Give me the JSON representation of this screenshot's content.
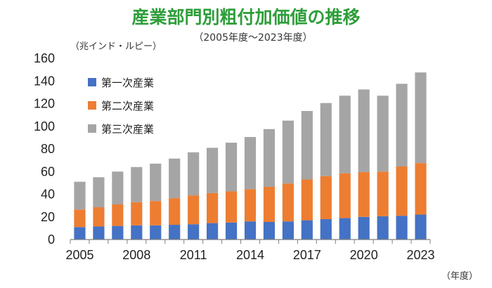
{
  "title": "産業部門別粗付加価値の推移",
  "subtitle": "（2005年度～2023年度）",
  "y_unit": "（兆インド・ルピー）",
  "x_unit": "（年度）",
  "colors": {
    "title": "#2e9e3a",
    "primary": "#4472c4",
    "secondary": "#ed7d31",
    "tertiary": "#a5a5a5",
    "axis": "#7f7f7f"
  },
  "chart_data": {
    "type": "bar",
    "stacked": true,
    "title": "産業部門別粗付加価値の推移",
    "subtitle": "（2005年度～2023年度）",
    "ylabel": "（兆インド・ルピー）",
    "xlabel": "（年度）",
    "ylim": [
      0,
      160
    ],
    "y_ticks": [
      0,
      20,
      40,
      60,
      80,
      100,
      120,
      140,
      160
    ],
    "x_tick_labels": [
      "2005",
      "2008",
      "2011",
      "2014",
      "2017",
      "2020",
      "2023"
    ],
    "grid": false,
    "legend_position": "top-left",
    "categories": [
      "2005",
      "2006",
      "2007",
      "2008",
      "2009",
      "2010",
      "2011",
      "2012",
      "2013",
      "2014",
      "2015",
      "2016",
      "2017",
      "2018",
      "2019",
      "2020",
      "2021",
      "2022",
      "2023"
    ],
    "series": [
      {
        "name": "第一次産業",
        "color": "#4472c4",
        "values": [
          11,
          11.5,
          12,
          12.5,
          12.5,
          13,
          13.5,
          14.5,
          15,
          16,
          15.5,
          16,
          17,
          18,
          19,
          20,
          20.5,
          21,
          22
        ]
      },
      {
        "name": "第二次産業",
        "color": "#ed7d31",
        "values": [
          15.5,
          17,
          19,
          20.5,
          21.5,
          23.5,
          25.5,
          26.5,
          27.5,
          28.5,
          31,
          33.5,
          36,
          38,
          39.5,
          39.5,
          39.5,
          43.5,
          45.5
        ]
      },
      {
        "name": "第三次産業",
        "color": "#a5a5a5",
        "values": [
          24.5,
          26.5,
          29,
          31,
          33,
          35,
          38,
          40,
          43,
          46,
          51,
          55.5,
          60.5,
          64.5,
          68.5,
          73,
          67,
          73,
          80
        ]
      }
    ]
  }
}
